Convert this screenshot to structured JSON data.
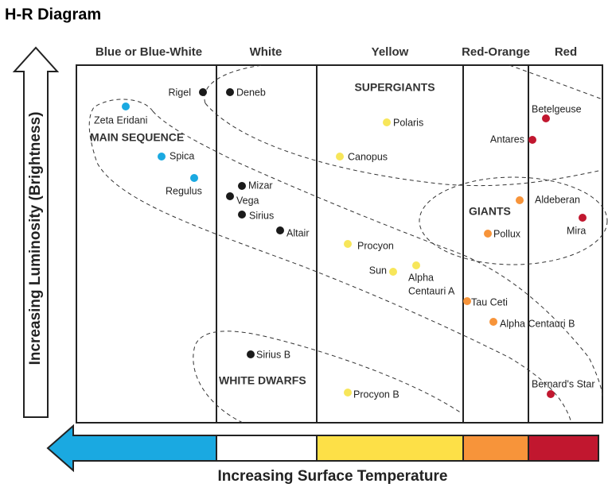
{
  "title": "H-R Diagram",
  "column_headers": [
    "Blue or Blue-White",
    "White",
    "Yellow",
    "Red-Orange",
    "Red"
  ],
  "y_axis_label": "Increasing Luminosity (Brightness)",
  "x_axis_label": "Increasing Surface Temperature",
  "regions": [
    "SUPERGIANTS",
    "MAIN SEQUENCE",
    "GIANTS",
    "WHITE DWARFS"
  ],
  "stars": [
    {
      "label": "Rigel"
    },
    {
      "label": "Deneb"
    },
    {
      "label": "Zeta Eridani"
    },
    {
      "label": "Spica"
    },
    {
      "label": "Regulus"
    },
    {
      "label": "Mizar"
    },
    {
      "label": "Vega"
    },
    {
      "label": "Sirius"
    },
    {
      "label": "Altair"
    },
    {
      "label": "Polaris"
    },
    {
      "label": "Canopus"
    },
    {
      "label": "Procyon"
    },
    {
      "label": "Sun"
    },
    {
      "label_lines": [
        "Alpha",
        "Centauri A"
      ]
    },
    {
      "label": "Betelgeuse"
    },
    {
      "label": "Antares"
    },
    {
      "label": "Aldeberan"
    },
    {
      "label": "Mira"
    },
    {
      "label": "Pollux"
    },
    {
      "label": "Tau Ceti"
    },
    {
      "label": "Alpha Centauri B"
    },
    {
      "label": "Sirius B"
    },
    {
      "label": "Procyon B"
    },
    {
      "label": "Bernard's Star"
    }
  ]
}
